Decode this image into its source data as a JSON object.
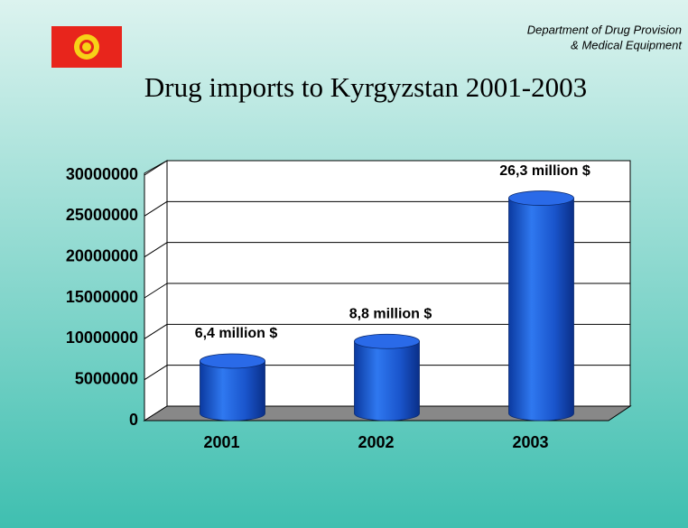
{
  "header": [
    "Department of Drug Provision",
    "& Medical Equipment"
  ],
  "chart_data": {
    "type": "bar",
    "title": "Drug imports to Kyrgyzstan 2001-2003",
    "categories": [
      "2001",
      "2002",
      "2003"
    ],
    "values": [
      6400000,
      8800000,
      26300000
    ],
    "value_labels": [
      "6,4 million $",
      "8,8 million $",
      "26,3 million $"
    ],
    "color": "#1f5fd0",
    "ylim": [
      0,
      30000000
    ],
    "yticks": [
      0,
      5000000,
      10000000,
      15000000,
      20000000,
      25000000,
      30000000
    ],
    "grid": true
  }
}
